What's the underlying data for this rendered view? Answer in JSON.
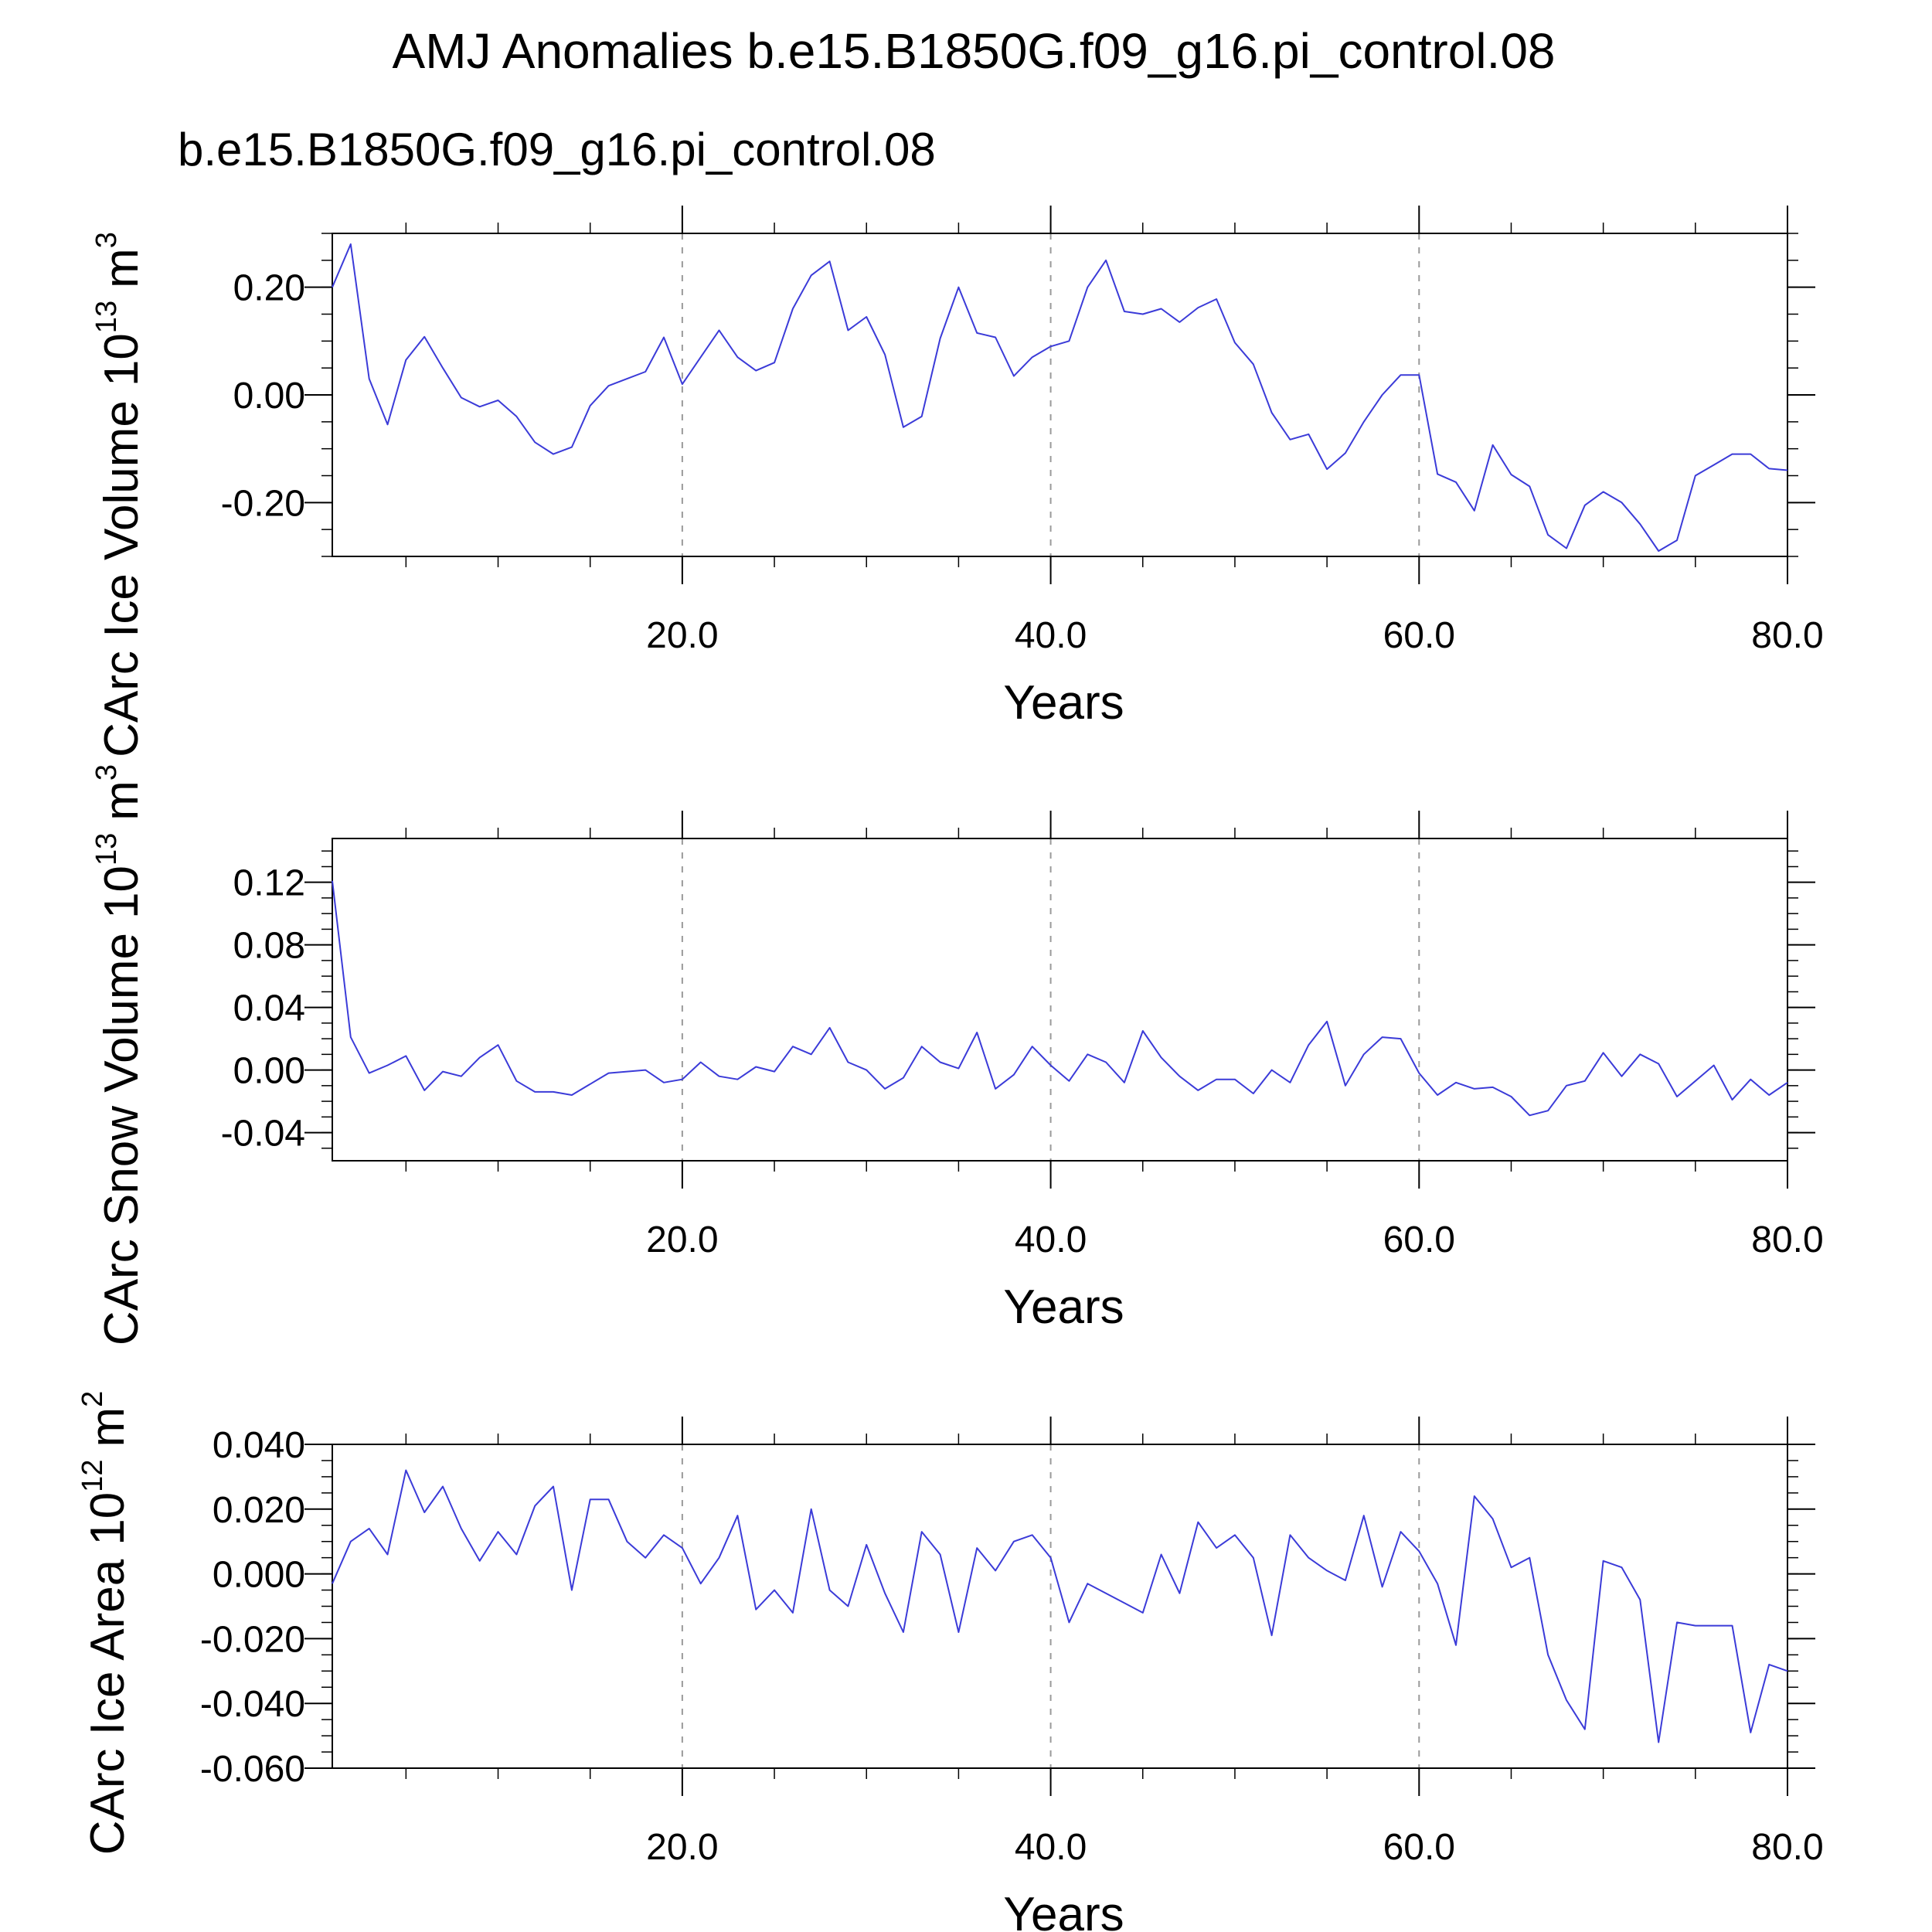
{
  "title": "AMJ Anomalies b.e15.B1850G.f09_g16.pi_control.08",
  "subtitle": "b.e15.B1850G.f09_g16.pi_control.08",
  "colors": {
    "series": "#3b3bd8",
    "subtitle": "#0000ff",
    "grid": "#9a9a9a",
    "axis": "#000000"
  },
  "chart_data": [
    {
      "type": "line",
      "ylabel": "CArc Ice Volume",
      "yunit_base": "10",
      "yunit_exp": "13",
      "yunit_m": "m",
      "yunit_mexp": "3",
      "xlabel": "Years",
      "xlim": [
        1,
        80
      ],
      "ylim": [
        -0.3,
        0.3
      ],
      "yticks": [
        -0.2,
        0.0,
        0.2
      ],
      "ytick_labels": [
        "-0.20",
        "0.00",
        "0.20"
      ],
      "yminor_step": 0.05,
      "xticks": [
        20,
        40,
        60,
        80
      ],
      "xtick_labels": [
        "20.0",
        "40.0",
        "60.0",
        "80.0"
      ],
      "xminor_step": 5,
      "grid": "vertical-dashed",
      "series": [
        {
          "x": [
            1,
            2,
            3,
            4,
            5,
            6,
            7,
            8,
            9,
            10,
            11,
            12,
            13,
            14,
            15,
            16,
            17,
            18,
            19,
            20,
            21,
            22,
            23,
            24,
            25,
            26,
            27,
            28,
            29,
            30,
            31,
            32,
            33,
            34,
            35,
            36,
            37,
            38,
            39,
            40,
            41,
            42,
            43,
            44,
            45,
            46,
            47,
            48,
            49,
            50,
            51,
            52,
            53,
            54,
            55,
            56,
            57,
            58,
            59,
            60,
            61,
            62,
            63,
            64,
            65,
            66,
            67,
            68,
            69,
            70,
            71,
            72,
            73,
            74,
            75,
            76,
            77,
            78,
            79,
            80
          ],
          "values": [
            0.2,
            0.28,
            0.03,
            -0.055,
            0.065,
            0.108,
            0.05,
            -0.005,
            -0.022,
            -0.01,
            -0.04,
            -0.088,
            -0.11,
            -0.097,
            -0.02,
            0.017,
            0.03,
            0.043,
            0.107,
            0.02,
            0.07,
            0.12,
            0.07,
            0.045,
            0.06,
            0.16,
            0.222,
            0.248,
            0.12,
            0.145,
            0.075,
            -0.06,
            -0.04,
            0.105,
            0.2,
            0.115,
            0.107,
            0.035,
            0.07,
            0.09,
            0.1,
            0.2,
            0.25,
            0.155,
            0.15,
            0.16,
            0.135,
            0.162,
            0.178,
            0.097,
            0.057,
            -0.033,
            -0.083,
            -0.073,
            -0.138,
            -0.108,
            -0.05,
            0.0,
            0.037,
            0.037,
            -0.147,
            -0.162,
            -0.215,
            -0.093,
            -0.148,
            -0.17,
            -0.26,
            -0.285,
            -0.205,
            -0.18,
            -0.2,
            -0.24,
            -0.29,
            -0.27,
            -0.15,
            -0.13,
            -0.11,
            -0.11,
            -0.137,
            -0.14
          ]
        }
      ]
    },
    {
      "type": "line",
      "ylabel": "CArc Snow Volume",
      "yunit_base": "10",
      "yunit_exp": "13",
      "yunit_m": "m",
      "yunit_mexp": "3",
      "xlabel": "Years",
      "xlim": [
        1,
        80
      ],
      "ylim": [
        -0.058,
        0.148
      ],
      "yticks": [
        -0.04,
        0.0,
        0.04,
        0.08,
        0.12
      ],
      "ytick_labels": [
        "-0.04",
        "0.00",
        "0.04",
        "0.08",
        "0.12"
      ],
      "yminor_step": 0.01,
      "xticks": [
        20,
        40,
        60,
        80
      ],
      "xtick_labels": [
        "20.0",
        "40.0",
        "60.0",
        "80.0"
      ],
      "xminor_step": 5,
      "grid": "vertical-dashed",
      "series": [
        {
          "x": [
            1,
            2,
            3,
            4,
            5,
            6,
            7,
            8,
            9,
            10,
            11,
            12,
            13,
            14,
            15,
            16,
            17,
            18,
            19,
            20,
            21,
            22,
            23,
            24,
            25,
            26,
            27,
            28,
            29,
            30,
            31,
            32,
            33,
            34,
            35,
            36,
            37,
            38,
            39,
            40,
            41,
            42,
            43,
            44,
            45,
            46,
            47,
            48,
            49,
            50,
            51,
            52,
            53,
            54,
            55,
            56,
            57,
            58,
            59,
            60,
            61,
            62,
            63,
            64,
            65,
            66,
            67,
            68,
            69,
            70,
            71,
            72,
            73,
            74,
            75,
            76,
            77,
            78,
            79,
            80
          ],
          "values": [
            0.121,
            0.021,
            -0.002,
            0.003,
            0.009,
            -0.013,
            -0.001,
            -0.004,
            0.008,
            0.016,
            -0.007,
            -0.014,
            -0.014,
            -0.016,
            -0.009,
            -0.002,
            -0.001,
            0.0,
            -0.008,
            -0.006,
            0.005,
            -0.004,
            -0.006,
            0.002,
            -0.001,
            0.015,
            0.01,
            0.027,
            0.005,
            0.0,
            -0.012,
            -0.005,
            0.015,
            0.005,
            0.001,
            0.024,
            -0.012,
            -0.003,
            0.015,
            0.003,
            -0.007,
            0.01,
            0.005,
            -0.008,
            0.025,
            0.008,
            -0.004,
            -0.013,
            -0.006,
            -0.006,
            -0.015,
            0.0,
            -0.008,
            0.016,
            0.031,
            -0.01,
            0.01,
            0.021,
            0.02,
            -0.002,
            -0.016,
            -0.008,
            -0.012,
            -0.011,
            -0.017,
            -0.029,
            -0.026,
            -0.01,
            -0.007,
            0.011,
            -0.004,
            0.01,
            0.004,
            -0.017,
            -0.007,
            0.003,
            -0.019,
            -0.006,
            -0.016,
            -0.008
          ]
        }
      ]
    },
    {
      "type": "line",
      "ylabel": "CArc Ice Area",
      "yunit_base": "10",
      "yunit_exp": "12",
      "yunit_m": "m",
      "yunit_mexp": "2",
      "xlabel": "Years",
      "xlim": [
        1,
        80
      ],
      "ylim": [
        -0.06,
        0.04
      ],
      "yticks": [
        -0.06,
        -0.04,
        -0.02,
        0.0,
        0.02,
        0.04
      ],
      "ytick_labels": [
        "-0.060",
        "-0.040",
        "-0.020",
        "0.000",
        "0.020",
        "0.040"
      ],
      "yminor_step": 0.005,
      "xticks": [
        20,
        40,
        60,
        80
      ],
      "xtick_labels": [
        "20.0",
        "40.0",
        "60.0",
        "80.0"
      ],
      "xminor_step": 5,
      "grid": "vertical-dashed",
      "series": [
        {
          "x": [
            1,
            2,
            3,
            4,
            5,
            6,
            7,
            8,
            9,
            10,
            11,
            12,
            13,
            14,
            15,
            16,
            17,
            18,
            19,
            20,
            21,
            22,
            23,
            24,
            25,
            26,
            27,
            28,
            29,
            30,
            31,
            32,
            33,
            34,
            35,
            36,
            37,
            38,
            39,
            40,
            41,
            42,
            43,
            44,
            45,
            46,
            47,
            48,
            49,
            50,
            51,
            52,
            53,
            54,
            55,
            56,
            57,
            58,
            59,
            60,
            61,
            62,
            63,
            64,
            65,
            66,
            67,
            68,
            69,
            70,
            71,
            72,
            73,
            74,
            75,
            76,
            77,
            78,
            79,
            80
          ],
          "values": [
            -0.003,
            0.01,
            0.014,
            0.006,
            0.032,
            0.019,
            0.027,
            0.014,
            0.004,
            0.013,
            0.006,
            0.021,
            0.027,
            -0.005,
            0.023,
            0.023,
            0.01,
            0.005,
            0.012,
            0.008,
            -0.003,
            0.005,
            0.018,
            -0.011,
            -0.005,
            -0.012,
            0.02,
            -0.005,
            -0.01,
            0.009,
            -0.006,
            -0.018,
            0.013,
            0.006,
            -0.018,
            0.008,
            0.001,
            0.01,
            0.012,
            0.005,
            -0.015,
            -0.003,
            -0.006,
            -0.009,
            -0.012,
            0.006,
            -0.006,
            0.016,
            0.008,
            0.012,
            0.005,
            -0.019,
            0.012,
            0.005,
            0.001,
            -0.002,
            0.018,
            -0.004,
            0.013,
            0.007,
            -0.003,
            -0.022,
            0.024,
            0.017,
            0.002,
            0.005,
            -0.025,
            -0.039,
            -0.048,
            0.004,
            0.002,
            -0.008,
            -0.052,
            -0.015,
            -0.016,
            -0.016,
            -0.016,
            -0.049,
            -0.028,
            -0.03
          ]
        }
      ]
    }
  ]
}
